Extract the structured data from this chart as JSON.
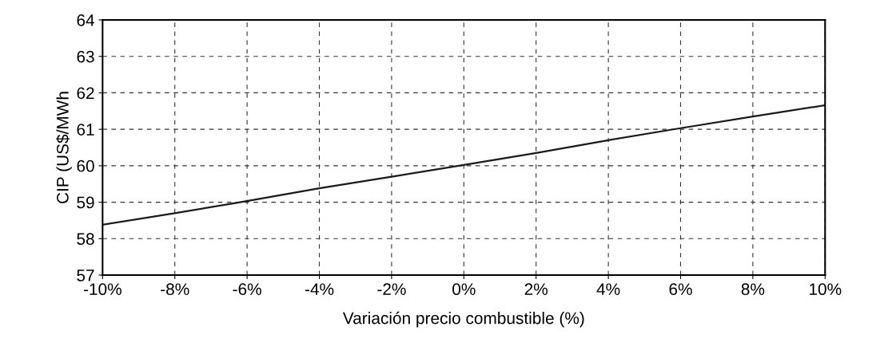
{
  "chart_data": {
    "type": "line",
    "xlabel": "Variación precio combustible (%)",
    "ylabel": "CIP (US$/MWh",
    "x": [
      -10,
      -8,
      -6,
      -4,
      -2,
      0,
      2,
      4,
      6,
      8,
      10
    ],
    "series": [
      {
        "color": "#1a1a1a",
        "values": [
          58.38,
          58.7,
          59.03,
          59.38,
          59.7,
          60.02,
          60.35,
          60.7,
          61.03,
          61.35,
          61.66
        ]
      }
    ],
    "xlim": [
      -10,
      10
    ],
    "xticks": [
      {
        "value": -10,
        "label": "-10%"
      },
      {
        "value": -8,
        "label": "-8%"
      },
      {
        "value": -6,
        "label": "-6%"
      },
      {
        "value": -4,
        "label": "-4%"
      },
      {
        "value": -2,
        "label": "-2%"
      },
      {
        "value": 0,
        "label": "0%"
      },
      {
        "value": 2,
        "label": "2%"
      },
      {
        "value": 4,
        "label": "4%"
      },
      {
        "value": 6,
        "label": "6%"
      },
      {
        "value": 8,
        "label": "8%"
      },
      {
        "value": 10,
        "label": "10%"
      }
    ],
    "ylim": [
      57,
      64
    ],
    "yticks": [
      57,
      58,
      59,
      60,
      61,
      62,
      63,
      64
    ],
    "grid": true,
    "marker": "none",
    "line_style": "solid"
  }
}
